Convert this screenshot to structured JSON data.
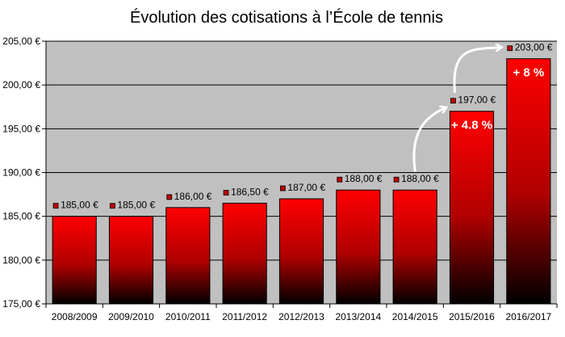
{
  "chart_data": {
    "type": "bar",
    "title": "Évolution des cotisations à l’École de tennis",
    "xlabel": "",
    "ylabel": "",
    "categories": [
      "2008/2009",
      "2009/2010",
      "2010/2011",
      "2011/2012",
      "2012/2013",
      "2013/2014",
      "2014/2015",
      "2015/2016",
      "2016/2017"
    ],
    "values": [
      185,
      185,
      186,
      186.5,
      187,
      188,
      188,
      197,
      203
    ],
    "data_labels": [
      "185,00 €",
      "185,00 €",
      "186,00 €",
      "186,50 €",
      "187,00 €",
      "188,00 €",
      "188,00 €",
      "197,00 €",
      "203,00 €"
    ],
    "ylim": [
      175,
      205
    ],
    "yticks": [
      175,
      180,
      185,
      190,
      195,
      200,
      205
    ],
    "ytick_labels": [
      "175,00 €",
      "180,00 €",
      "185,00 €",
      "190,00 €",
      "195,00 €",
      "200,00 €",
      "205,00 €"
    ],
    "grid": true,
    "legend": "none",
    "annotations": [
      {
        "text": "+ 4.8 %",
        "category": "2015/2016"
      },
      {
        "text": "+ 8 %",
        "category": "2016/2017"
      }
    ],
    "colors": {
      "plot_background": "#c0c0c0",
      "bar_top": "#ff0000",
      "bar_bottom": "#000000",
      "label_marker": "#c00000",
      "arrow": "#ffffff"
    }
  }
}
